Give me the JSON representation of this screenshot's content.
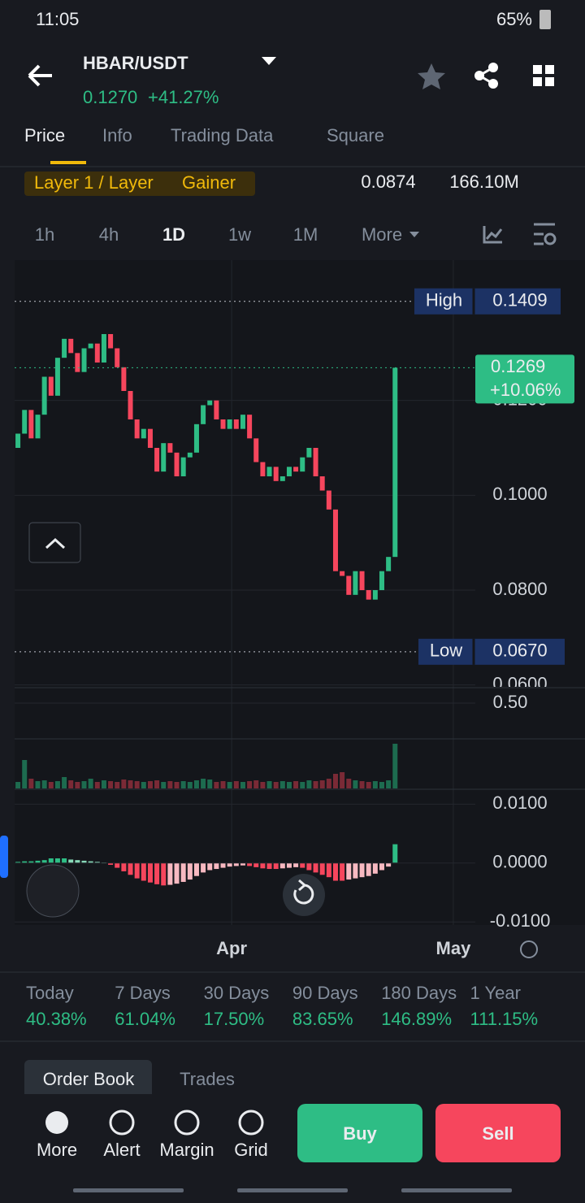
{
  "status_bar": {
    "time": "11:05",
    "battery": "65%"
  },
  "header": {
    "pair": "HBAR/USDT",
    "price": "0.1270",
    "change": "+41.27%"
  },
  "tabs": [
    "Price",
    "Info",
    "Trading Data",
    "Square"
  ],
  "tags": [
    "Layer 1 / Layer",
    "Gainer"
  ],
  "summary": [
    "0.0874",
    "166.10M"
  ],
  "intervals": [
    "1h",
    "4h",
    "1D",
    "1w",
    "1M",
    "More"
  ],
  "chart_data": {
    "type": "candlestick",
    "open": [
      0.11,
      0.113,
      0.118,
      0.112,
      0.117,
      0.125,
      0.121,
      0.129,
      0.133,
      0.13,
      0.126,
      0.131,
      0.132,
      0.128,
      0.134,
      0.131,
      0.127,
      0.122,
      0.116,
      0.112,
      0.114,
      0.11,
      0.105,
      0.111,
      0.109,
      0.104,
      0.108,
      0.109,
      0.115,
      0.119,
      0.12,
      0.116,
      0.114,
      0.116,
      0.114,
      0.117,
      0.112,
      0.107,
      0.104,
      0.106,
      0.103,
      0.104,
      0.106,
      0.105,
      0.108,
      0.11,
      0.104,
      0.101,
      0.097,
      0.084,
      0.083,
      0.079,
      0.084,
      0.08,
      0.078,
      0.08,
      0.084,
      0.087
    ],
    "high": {
      "name": "High",
      "value": 0.1409,
      "label": "0.1409"
    },
    "low": {
      "name": "Low",
      "value": 0.067,
      "label": "0.0670"
    },
    "close": [
      0.113,
      0.118,
      0.112,
      0.117,
      0.125,
      0.121,
      0.129,
      0.133,
      0.13,
      0.126,
      0.131,
      0.132,
      0.128,
      0.134,
      0.131,
      0.127,
      0.122,
      0.116,
      0.112,
      0.114,
      0.11,
      0.105,
      0.111,
      0.109,
      0.104,
      0.108,
      0.109,
      0.115,
      0.119,
      0.12,
      0.116,
      0.114,
      0.116,
      0.114,
      0.117,
      0.112,
      0.107,
      0.104,
      0.106,
      0.103,
      0.104,
      0.106,
      0.105,
      0.108,
      0.11,
      0.104,
      0.101,
      0.097,
      0.084,
      0.083,
      0.079,
      0.084,
      0.08,
      0.078,
      0.08,
      0.084,
      0.087,
      0.1269
    ],
    "colors": {
      "up": "#2ebd85",
      "down": "#f6465d"
    },
    "xlim": [
      -0.5,
      85.7
    ],
    "xticks": [
      {
        "value": 32.3,
        "label": "Apr"
      },
      {
        "value": 65.8,
        "label": "May"
      }
    ],
    "ylim": [
      0.0596,
      0.1496
    ],
    "yticks": [
      {
        "value": 0.06,
        "label": "0.0600"
      },
      {
        "value": 0.08,
        "label": "0.0800"
      },
      {
        "value": 0.1,
        "label": "0.1000"
      },
      {
        "value": 0.12,
        "label": "0.1200"
      }
    ],
    "last": {
      "label": "0.1269",
      "change": "+10.06%"
    },
    "osc_ylim": [
      0.12,
      0.65
    ],
    "osc_yticks": [
      {
        "value": 0.5,
        "label": "0.50"
      }
    ],
    "volume": [
      8,
      35,
      12,
      9,
      10,
      8,
      9,
      14,
      10,
      8,
      9,
      12,
      8,
      10,
      9,
      8,
      11,
      10,
      9,
      8,
      9,
      10,
      8,
      9,
      8,
      9,
      8,
      10,
      12,
      11,
      8,
      9,
      8,
      9,
      8,
      9,
      10,
      8,
      9,
      8,
      9,
      8,
      9,
      8,
      10,
      9,
      10,
      12,
      18,
      20,
      12,
      10,
      9,
      8,
      9,
      8,
      10,
      55
    ],
    "volume_ylim": [
      0,
      60
    ],
    "macd_hist": [
      0.0002,
      0.0003,
      0.0003,
      0.0004,
      0.0005,
      0.0008,
      0.0008,
      0.0008,
      0.0006,
      0.0005,
      0.0004,
      0.0003,
      0.0002,
      0.0001,
      -0.0003,
      -0.0008,
      -0.0014,
      -0.002,
      -0.0026,
      -0.003,
      -0.0033,
      -0.0036,
      -0.0038,
      -0.0037,
      -0.0035,
      -0.0032,
      -0.0028,
      -0.0022,
      -0.0016,
      -0.0012,
      -0.001,
      -0.0008,
      -0.0006,
      -0.0005,
      -0.0004,
      -0.0005,
      -0.0007,
      -0.0009,
      -0.001,
      -0.001,
      -0.0009,
      -0.0008,
      -0.0007,
      -0.0008,
      -0.0012,
      -0.0016,
      -0.002,
      -0.0024,
      -0.003,
      -0.003,
      -0.0028,
      -0.0026,
      -0.0024,
      -0.0022,
      -0.0018,
      -0.0012,
      -0.0006,
      0.0032
    ],
    "macd_ylim": [
      -0.0108,
      0.0124
    ],
    "macd_yticks": [
      {
        "value": 0.01,
        "label": "0.0100"
      },
      {
        "value": 0,
        "label": "0.0000"
      },
      {
        "value": -0.01,
        "label": "-0.0100"
      }
    ]
  },
  "performance": [
    {
      "label": "Today",
      "value": "40.38%"
    },
    {
      "label": "7 Days",
      "value": "61.04%"
    },
    {
      "label": "30 Days",
      "value": "17.50%"
    },
    {
      "label": "90 Days",
      "value": "83.65%"
    },
    {
      "label": "180 Days",
      "value": "146.89%"
    },
    {
      "label": "1 Year",
      "value": "111.15%"
    }
  ],
  "book_tabs": [
    "Order Book",
    "Trades"
  ],
  "nav": [
    "More",
    "Alert",
    "Margin",
    "Grid"
  ],
  "actions": [
    "Buy",
    "Sell"
  ]
}
